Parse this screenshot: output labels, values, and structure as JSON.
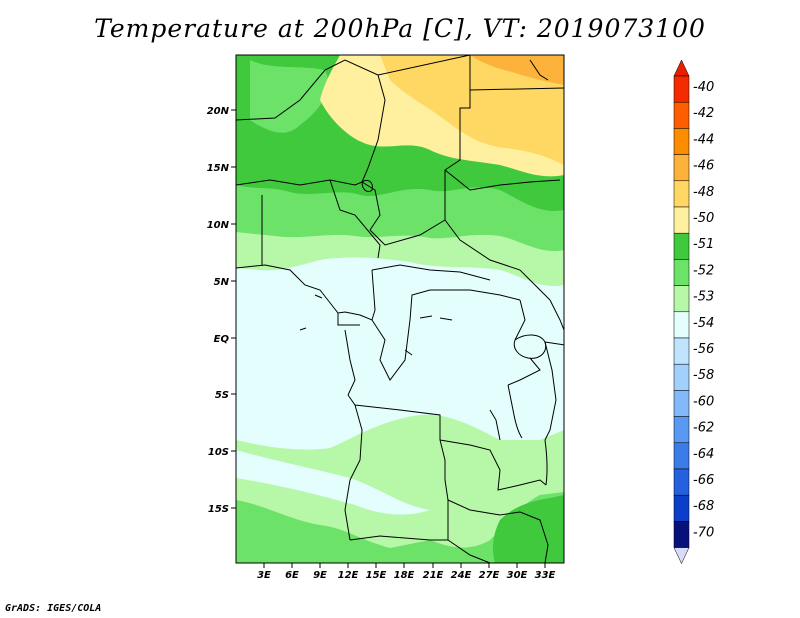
{
  "title": "Temperature at 200hPa [C], VT: 2019073100",
  "credit": "GrADS: IGES/COLA",
  "map": {
    "lat_labels": [
      "20N",
      "15N",
      "10N",
      "5N",
      "EQ",
      "5S",
      "10S",
      "15S"
    ],
    "lon_labels": [
      "3E",
      "6E",
      "9E",
      "12E",
      "15E",
      "18E",
      "21E",
      "24E",
      "27E",
      "30E",
      "33E"
    ]
  },
  "colorbar": {
    "labels": [
      "-40",
      "-42",
      "-44",
      "-46",
      "-48",
      "-50",
      "-51",
      "-52",
      "-53",
      "-54",
      "-56",
      "-58",
      "-60",
      "-62",
      "-64",
      "-66",
      "-68",
      "-70"
    ],
    "colors": [
      "#f52b00",
      "#fe5e00",
      "#fc8c00",
      "#fcb23b",
      "#fed863",
      "#fef09f",
      "#41c93e",
      "#6de269",
      "#b7f7a8",
      "#e3fefd",
      "#c0e3fe",
      "#a2d0fc",
      "#83b9f9",
      "#5899f1",
      "#3c7ce9",
      "#2560df",
      "#0c3fc9",
      "#07117a"
    ],
    "top_arrow_color": "#e82000",
    "bottom_arrow_color": "#d8dcf8"
  }
}
